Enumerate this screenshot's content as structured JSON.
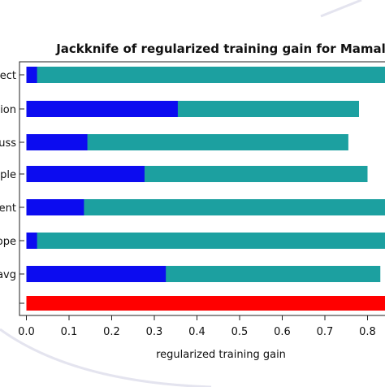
{
  "chart_data": {
    "type": "bar",
    "title": "Jackknife of regularized training gain for Mamal",
    "xlabel": "regularized training gain",
    "ylabel": "",
    "xlim": [
      0,
      0.85
    ],
    "xticks": [
      "0.0",
      "0.1",
      "0.2",
      "0.3",
      "0.4",
      "0.5",
      "0.6",
      "0.7",
      "0.8"
    ],
    "categories": [
      "ect",
      "ion",
      "uss",
      "ple",
      "ent",
      "ope",
      "avg",
      ""
    ],
    "series": [
      {
        "name": "",
        "color": "#0c0cf0",
        "values": [
          0.025,
          0.355,
          0.143,
          0.277,
          0.135,
          0.025,
          0.327,
          null
        ]
      },
      {
        "name": "",
        "color": "#1ca0a0",
        "values": [
          0.85,
          0.78,
          0.755,
          0.8,
          0.85,
          0.85,
          0.83,
          null
        ]
      },
      {
        "name": "",
        "color": "#ff0000",
        "values": [
          null,
          null,
          null,
          null,
          null,
          null,
          null,
          0.85
        ]
      }
    ],
    "grid": false,
    "legend": "none"
  }
}
